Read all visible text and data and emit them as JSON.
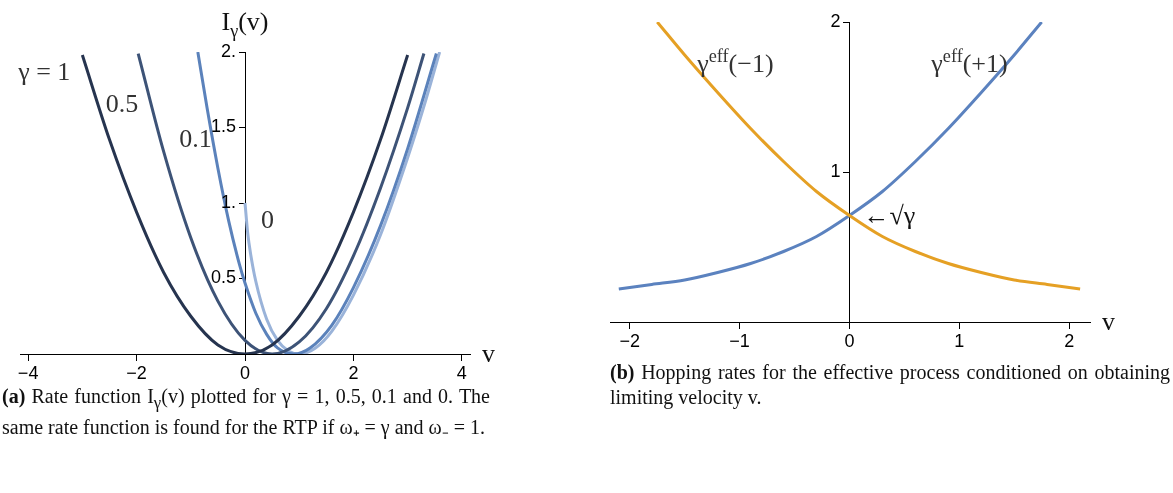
{
  "chart_data": [
    {
      "type": "line",
      "ylabel": "I$_{γ}$(v)",
      "xlabel": "v",
      "xlim": [
        -4.15,
        4.15
      ],
      "ylim": [
        0,
        2
      ],
      "xticks": [
        {
          "value": -4,
          "label": "−4"
        },
        {
          "value": -2,
          "label": "−2"
        },
        0,
        2,
        4
      ],
      "yticks": [
        0.5,
        {
          "value": 1,
          "label": "1."
        },
        1.5,
        {
          "value": 2,
          "label": "2."
        }
      ],
      "legend": false,
      "grid": false,
      "series": [
        {
          "name": "γ = 1",
          "color": "#26344f",
          "x": [
            -3,
            -2.5,
            -2,
            -1.5,
            -1,
            -0.5,
            0,
            0.5,
            1,
            1.5,
            2,
            2.5,
            3
          ],
          "values": [
            1.98,
            1.42,
            0.94,
            0.54,
            0.25,
            0.06,
            0,
            0.06,
            0.25,
            0.54,
            0.94,
            1.42,
            1.98
          ]
        },
        {
          "name": "0.5",
          "color": "#3d5377",
          "x": [
            -1.97,
            -1.5,
            -1,
            -0.5,
            0,
            0.5,
            1,
            1.5,
            2,
            2.5,
            3,
            3.3
          ],
          "values": [
            1.99,
            1.34,
            0.77,
            0.35,
            0.09,
            0,
            0.08,
            0.3,
            0.65,
            1.1,
            1.63,
            1.99
          ]
        },
        {
          "name": "0.1",
          "color": "#5b82bb",
          "x": [
            -0.87,
            -0.7,
            -0.5,
            -0.3,
            -0.1,
            0,
            0.2,
            0.4,
            0.6,
            0.9,
            1.2,
            1.6,
            2,
            2.5,
            3,
            3.53
          ],
          "values": [
            2,
            1.63,
            1.23,
            0.88,
            0.59,
            0.47,
            0.27,
            0.13,
            0.04,
            0,
            0.04,
            0.19,
            0.44,
            0.85,
            1.36,
            1.99
          ]
        },
        {
          "name": "0",
          "color": "#9ab3d9",
          "x": [
            0,
            0.05,
            0.1,
            0.2,
            0.4,
            0.6,
            0.8,
            1,
            1.3,
            1.6,
            2,
            2.5,
            3,
            3.3,
            3.59
          ],
          "values": [
            1,
            0.8,
            0.67,
            0.48,
            0.23,
            0.09,
            0.02,
            0,
            0.04,
            0.15,
            0.39,
            0.79,
            1.3,
            1.64,
            2
          ]
        }
      ],
      "annotations": [
        "(a) Rate function I$_{γ}$(v) plotted for γ = 1, 0.5, 0.1 and 0. The same rate function is found for the RTP if ω₊ = γ and ω₋ = 1."
      ]
    },
    {
      "type": "line",
      "xlabel": "v",
      "xlim": [
        -2.18,
        2.19
      ],
      "ylim": [
        0,
        2
      ],
      "xticks": [
        {
          "value": -2,
          "label": "−2"
        },
        {
          "value": -1,
          "label": "−1"
        },
        0,
        1,
        2
      ],
      "yticks": [
        1,
        2
      ],
      "legend": false,
      "grid": false,
      "series": [
        {
          "name": "γ$^{eff}$(−1)",
          "color": "#e5a024",
          "x": [
            -1.75,
            -1.5,
            -1.2,
            -0.9,
            -0.6,
            -0.3,
            0,
            0.3,
            0.6,
            0.9,
            1.2,
            1.5,
            1.8,
            2.1
          ],
          "values": [
            2,
            1.78,
            1.53,
            1.29,
            1.07,
            0.87,
            0.71,
            0.57,
            0.47,
            0.39,
            0.33,
            0.28,
            0.25,
            0.22
          ]
        },
        {
          "name": "γ$^{eff}$(+1)",
          "color": "#5b82bf",
          "x": [
            -2.1,
            -1.8,
            -1.5,
            -1.2,
            -0.9,
            -0.6,
            -0.3,
            0,
            0.3,
            0.6,
            0.9,
            1.2,
            1.5,
            1.75
          ],
          "values": [
            0.22,
            0.25,
            0.28,
            0.33,
            0.39,
            0.47,
            0.57,
            0.71,
            0.87,
            1.07,
            1.29,
            1.53,
            1.78,
            2
          ]
        }
      ],
      "annotations": [
        {
          "text": "←√γ",
          "x": 0,
          "y": 0.71
        },
        "(b) Hopping rates for the effective process conditioned on obtaining limiting velocity v."
      ]
    }
  ]
}
